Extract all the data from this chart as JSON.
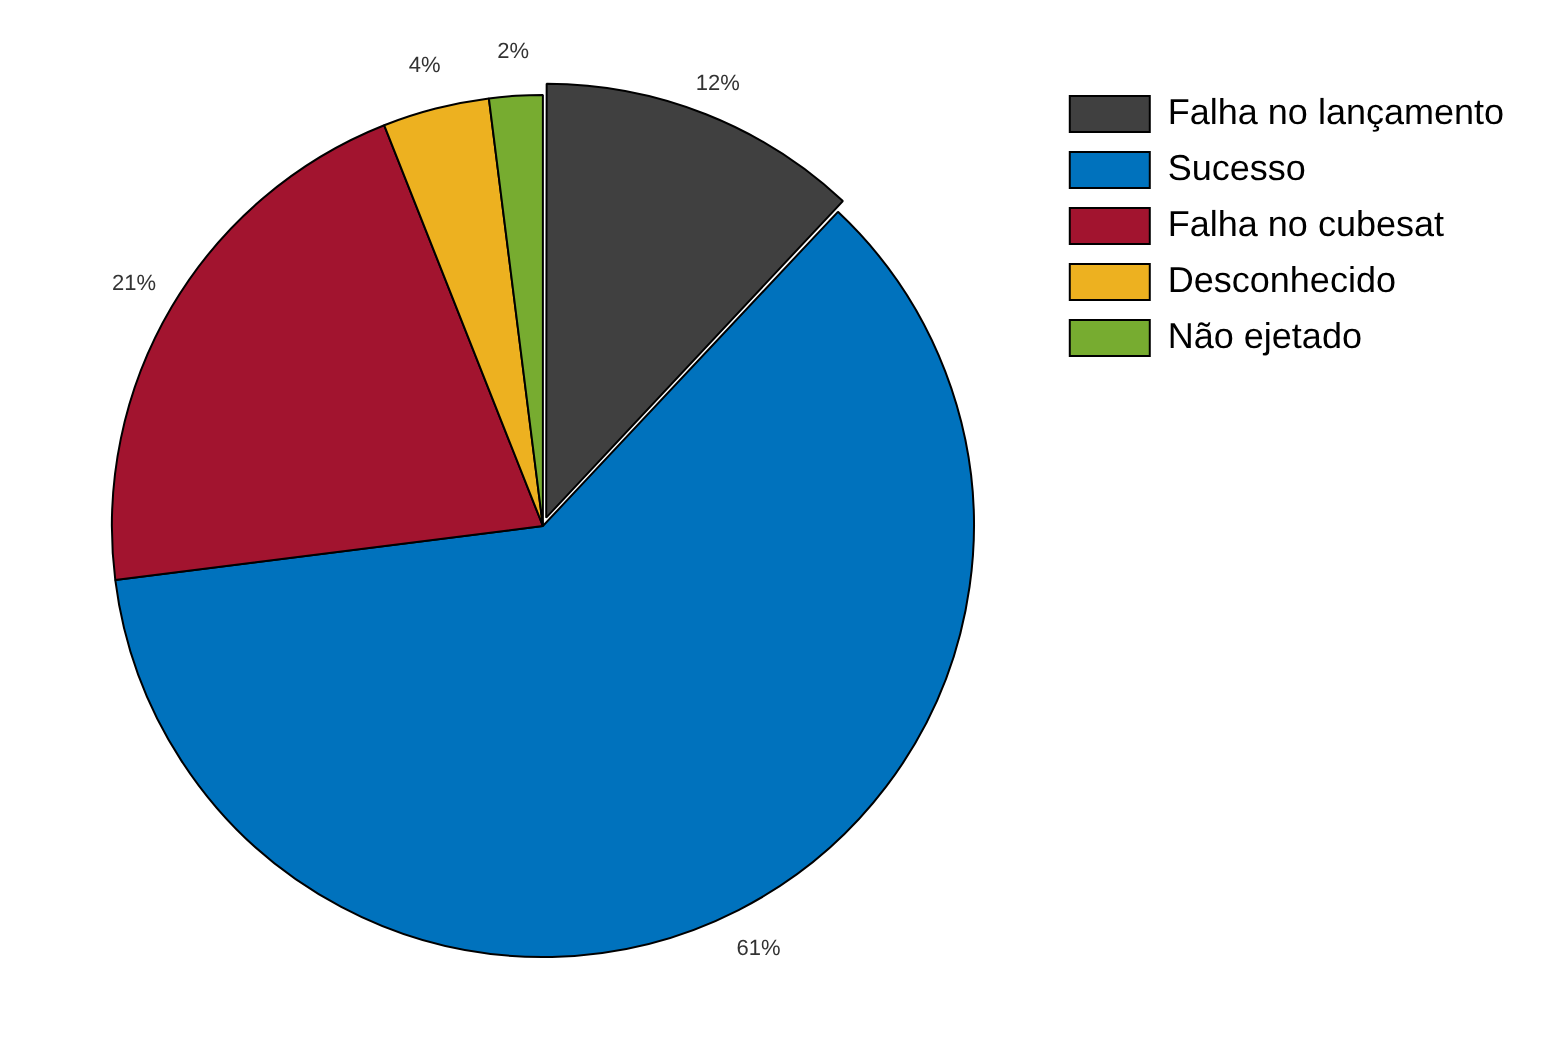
{
  "chart_data": {
    "type": "pie",
    "categories": [
      "Falha no lançamento",
      "Sucesso",
      "Falha no cubesat",
      "Desconhecido",
      "Não ejetado"
    ],
    "values": [
      12,
      61,
      21,
      4,
      2
    ],
    "value_labels": [
      "12%",
      "61%",
      "21%",
      "4%",
      "2%"
    ],
    "colors": [
      "#404040",
      "#0072bd",
      "#a2142f",
      "#edb120",
      "#77ac30"
    ],
    "legend": "top right"
  }
}
